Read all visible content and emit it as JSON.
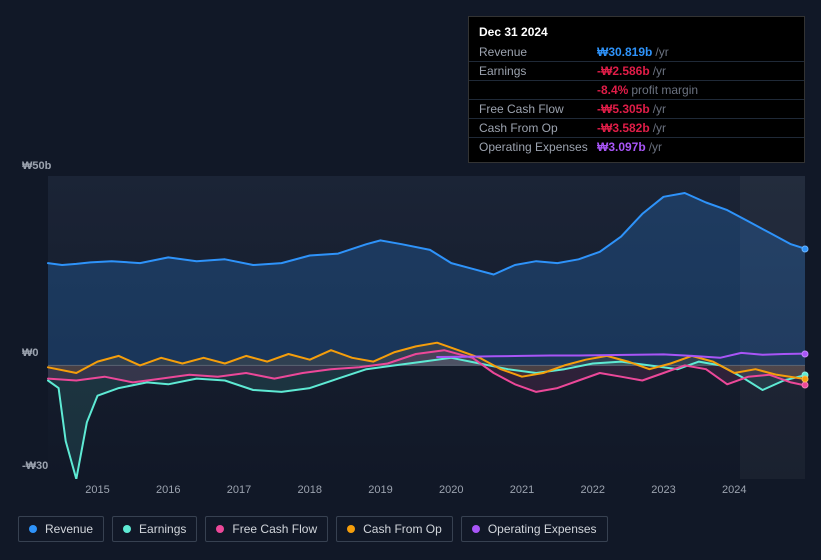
{
  "tooltip": {
    "date": "Dec 31 2024",
    "rows": [
      {
        "label": "Revenue",
        "value": "₩30.819b",
        "suffix": "/yr",
        "color": "#2e93fa"
      },
      {
        "label": "Earnings",
        "value": "-₩2.586b",
        "suffix": "/yr",
        "color": "#e11d48"
      },
      {
        "label": "",
        "value": "-8.4%",
        "suffix": "profit margin",
        "color": "#e11d48"
      },
      {
        "label": "Free Cash Flow",
        "value": "-₩5.305b",
        "suffix": "/yr",
        "color": "#e11d48"
      },
      {
        "label": "Cash From Op",
        "value": "-₩3.582b",
        "suffix": "/yr",
        "color": "#e11d48"
      },
      {
        "label": "Operating Expenses",
        "value": "₩3.097b",
        "suffix": "/yr",
        "color": "#a855f7"
      }
    ]
  },
  "chart": {
    "background": "#111827",
    "plot_bg_gradient_top": "#1b2436",
    "plot_bg_gradient_bottom": "#111827",
    "ylim": [
      -30,
      50
    ],
    "yticks": [
      {
        "v": 50,
        "label": "₩50b"
      },
      {
        "v": 0,
        "label": "₩0"
      },
      {
        "v": -30,
        "label": "-₩30b"
      }
    ],
    "baseline_color": "#4b5563",
    "xlim": [
      2014.3,
      2025.0
    ],
    "xticks": [
      2015,
      2016,
      2017,
      2018,
      2019,
      2020,
      2021,
      2022,
      2023,
      2024
    ],
    "cursor_x": 2025.0,
    "highlight_x": 2024.08,
    "series": [
      {
        "name": "Revenue",
        "color": "#2e93fa",
        "fill": "rgba(46,147,250,0.22)",
        "width": 2,
        "marker_y": 30.8,
        "data": [
          [
            2014.3,
            27.0
          ],
          [
            2014.5,
            26.5
          ],
          [
            2014.7,
            26.8
          ],
          [
            2014.9,
            27.2
          ],
          [
            2015.2,
            27.5
          ],
          [
            2015.6,
            27.0
          ],
          [
            2016.0,
            28.5
          ],
          [
            2016.4,
            27.5
          ],
          [
            2016.8,
            28.0
          ],
          [
            2017.2,
            26.5
          ],
          [
            2017.6,
            27.0
          ],
          [
            2018.0,
            29.0
          ],
          [
            2018.4,
            29.5
          ],
          [
            2018.8,
            32.0
          ],
          [
            2019.0,
            33.0
          ],
          [
            2019.3,
            32.0
          ],
          [
            2019.7,
            30.5
          ],
          [
            2020.0,
            27.0
          ],
          [
            2020.3,
            25.5
          ],
          [
            2020.6,
            24.0
          ],
          [
            2020.9,
            26.5
          ],
          [
            2021.2,
            27.5
          ],
          [
            2021.5,
            27.0
          ],
          [
            2021.8,
            28.0
          ],
          [
            2022.1,
            30.0
          ],
          [
            2022.4,
            34.0
          ],
          [
            2022.7,
            40.0
          ],
          [
            2023.0,
            44.5
          ],
          [
            2023.3,
            45.5
          ],
          [
            2023.6,
            43.0
          ],
          [
            2023.9,
            41.0
          ],
          [
            2024.2,
            38.0
          ],
          [
            2024.5,
            35.0
          ],
          [
            2024.8,
            32.0
          ],
          [
            2025.0,
            30.8
          ]
        ]
      },
      {
        "name": "Earnings",
        "color": "#5eead4",
        "fill": "rgba(94,234,212,0.12)",
        "width": 2,
        "marker_y": -2.6,
        "data": [
          [
            2014.3,
            -4.0
          ],
          [
            2014.45,
            -6.0
          ],
          [
            2014.55,
            -20.0
          ],
          [
            2014.7,
            -30.0
          ],
          [
            2014.85,
            -15.0
          ],
          [
            2015.0,
            -8.0
          ],
          [
            2015.3,
            -6.0
          ],
          [
            2015.7,
            -4.5
          ],
          [
            2016.0,
            -5.0
          ],
          [
            2016.4,
            -3.5
          ],
          [
            2016.8,
            -4.0
          ],
          [
            2017.2,
            -6.5
          ],
          [
            2017.6,
            -7.0
          ],
          [
            2018.0,
            -6.0
          ],
          [
            2018.4,
            -3.5
          ],
          [
            2018.8,
            -1.0
          ],
          [
            2019.2,
            0.0
          ],
          [
            2019.6,
            1.0
          ],
          [
            2020.0,
            2.0
          ],
          [
            2020.4,
            0.5
          ],
          [
            2020.8,
            -1.0
          ],
          [
            2021.2,
            -2.0
          ],
          [
            2021.6,
            -1.0
          ],
          [
            2022.0,
            0.5
          ],
          [
            2022.4,
            1.0
          ],
          [
            2022.8,
            0.0
          ],
          [
            2023.2,
            -1.0
          ],
          [
            2023.5,
            1.0
          ],
          [
            2023.8,
            0.0
          ],
          [
            2024.1,
            -3.0
          ],
          [
            2024.4,
            -6.5
          ],
          [
            2024.7,
            -4.0
          ],
          [
            2025.0,
            -2.6
          ]
        ]
      },
      {
        "name": "Free Cash Flow",
        "color": "#ec4899",
        "fill": "rgba(236,72,153,0.12)",
        "width": 2,
        "marker_y": -5.3,
        "data": [
          [
            2014.3,
            -3.5
          ],
          [
            2014.7,
            -4.0
          ],
          [
            2015.1,
            -3.0
          ],
          [
            2015.5,
            -4.5
          ],
          [
            2015.9,
            -3.5
          ],
          [
            2016.3,
            -2.5
          ],
          [
            2016.7,
            -3.0
          ],
          [
            2017.1,
            -2.0
          ],
          [
            2017.5,
            -3.5
          ],
          [
            2017.9,
            -2.0
          ],
          [
            2018.3,
            -1.0
          ],
          [
            2018.7,
            -0.5
          ],
          [
            2019.1,
            0.5
          ],
          [
            2019.5,
            3.0
          ],
          [
            2019.9,
            4.0
          ],
          [
            2020.3,
            2.0
          ],
          [
            2020.6,
            -2.0
          ],
          [
            2020.9,
            -5.0
          ],
          [
            2021.2,
            -7.0
          ],
          [
            2021.5,
            -6.0
          ],
          [
            2021.8,
            -4.0
          ],
          [
            2022.1,
            -2.0
          ],
          [
            2022.4,
            -3.0
          ],
          [
            2022.7,
            -4.0
          ],
          [
            2023.0,
            -2.0
          ],
          [
            2023.3,
            0.0
          ],
          [
            2023.6,
            -1.0
          ],
          [
            2023.9,
            -5.0
          ],
          [
            2024.2,
            -3.0
          ],
          [
            2024.5,
            -2.5
          ],
          [
            2024.8,
            -4.5
          ],
          [
            2025.0,
            -5.3
          ]
        ]
      },
      {
        "name": "Cash From Op",
        "color": "#f59e0b",
        "fill": "rgba(245,158,11,0.10)",
        "width": 2,
        "marker_y": -3.6,
        "data": [
          [
            2014.3,
            -0.5
          ],
          [
            2014.7,
            -2.0
          ],
          [
            2015.0,
            1.0
          ],
          [
            2015.3,
            2.5
          ],
          [
            2015.6,
            0.0
          ],
          [
            2015.9,
            2.0
          ],
          [
            2016.2,
            0.5
          ],
          [
            2016.5,
            2.0
          ],
          [
            2016.8,
            0.5
          ],
          [
            2017.1,
            2.5
          ],
          [
            2017.4,
            1.0
          ],
          [
            2017.7,
            3.0
          ],
          [
            2018.0,
            1.5
          ],
          [
            2018.3,
            4.0
          ],
          [
            2018.6,
            2.0
          ],
          [
            2018.9,
            1.0
          ],
          [
            2019.2,
            3.5
          ],
          [
            2019.5,
            5.0
          ],
          [
            2019.8,
            6.0
          ],
          [
            2020.1,
            4.0
          ],
          [
            2020.4,
            2.0
          ],
          [
            2020.7,
            -1.0
          ],
          [
            2021.0,
            -3.0
          ],
          [
            2021.3,
            -2.0
          ],
          [
            2021.6,
            0.0
          ],
          [
            2021.9,
            1.5
          ],
          [
            2022.2,
            2.5
          ],
          [
            2022.5,
            1.0
          ],
          [
            2022.8,
            -1.0
          ],
          [
            2023.1,
            0.5
          ],
          [
            2023.4,
            2.5
          ],
          [
            2023.7,
            1.0
          ],
          [
            2024.0,
            -2.0
          ],
          [
            2024.3,
            -1.0
          ],
          [
            2024.6,
            -2.5
          ],
          [
            2025.0,
            -3.6
          ]
        ]
      },
      {
        "name": "Operating Expenses",
        "color": "#a855f7",
        "fill": "none",
        "width": 2,
        "marker_y": 3.1,
        "data": [
          [
            2019.8,
            2.2
          ],
          [
            2020.2,
            2.3
          ],
          [
            2020.6,
            2.4
          ],
          [
            2021.0,
            2.5
          ],
          [
            2021.4,
            2.6
          ],
          [
            2021.8,
            2.6
          ],
          [
            2022.2,
            2.7
          ],
          [
            2022.6,
            2.8
          ],
          [
            2023.0,
            2.9
          ],
          [
            2023.4,
            2.5
          ],
          [
            2023.8,
            2.0
          ],
          [
            2024.1,
            3.3
          ],
          [
            2024.4,
            2.8
          ],
          [
            2024.7,
            3.0
          ],
          [
            2025.0,
            3.1
          ]
        ]
      }
    ],
    "legend": [
      {
        "label": "Revenue",
        "color": "#2e93fa"
      },
      {
        "label": "Earnings",
        "color": "#5eead4"
      },
      {
        "label": "Free Cash Flow",
        "color": "#ec4899"
      },
      {
        "label": "Cash From Op",
        "color": "#f59e0b"
      },
      {
        "label": "Operating Expenses",
        "color": "#a855f7"
      }
    ]
  }
}
